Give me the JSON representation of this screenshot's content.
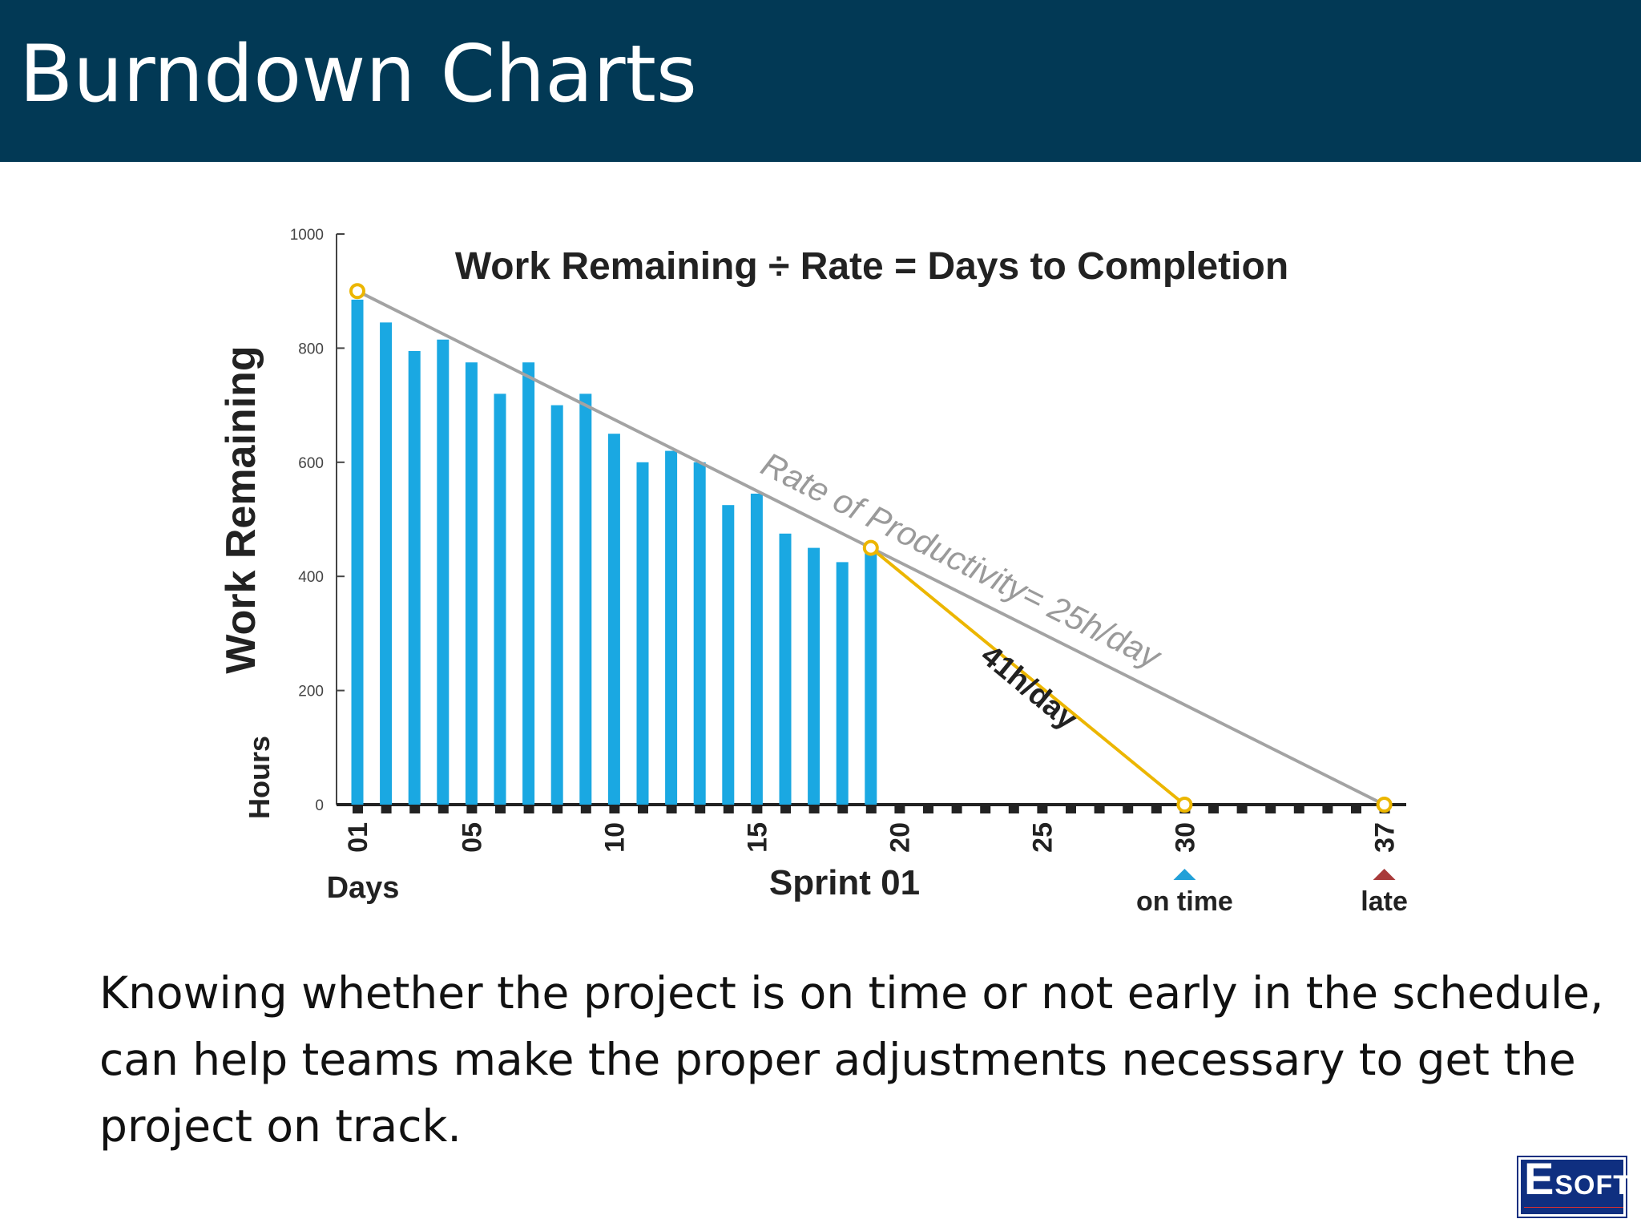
{
  "slide": {
    "title": "Burndown Charts",
    "caption": "Knowing whether the project is on time or not early in the schedule, can help teams make the proper adjustments necessary to get the project on track.",
    "logo": {
      "first_letter": "E",
      "rest": "SOFT"
    }
  },
  "colors": {
    "header_bg": "#023955",
    "bars": "#1aa8e2",
    "ideal_line": "#a3a3a3",
    "actual_line": "#ecb600",
    "on_time_marker": "#21a0d8",
    "late_marker": "#a83a3a"
  },
  "chart_data": {
    "type": "bar",
    "title": "Work Remaining ÷ Rate = Days to Completion",
    "ylabel": "Work Remaining",
    "yunit_label": "Hours",
    "xlabel": "Days",
    "xlabel_center": "Sprint 01",
    "ylim": [
      0,
      1000
    ],
    "yticks": [
      0,
      200,
      400,
      600,
      800,
      1000
    ],
    "xticks": [
      "01",
      "05",
      "10",
      "15",
      "20",
      "25",
      "30",
      "37"
    ],
    "days": [
      1,
      2,
      3,
      4,
      5,
      6,
      7,
      8,
      9,
      10,
      11,
      12,
      13,
      14,
      15,
      16,
      17,
      18,
      19
    ],
    "values": [
      885,
      845,
      795,
      815,
      775,
      720,
      775,
      700,
      720,
      650,
      600,
      620,
      600,
      525,
      545,
      475,
      450,
      425,
      445
    ],
    "ideal_line": {
      "label": "Rate of Productivity= 25h/day",
      "points": [
        [
          1,
          900
        ],
        [
          37,
          0
        ]
      ]
    },
    "actual_projection": {
      "label": "41h/day",
      "points": [
        [
          19,
          450
        ],
        [
          30,
          0
        ]
      ]
    },
    "milestones": [
      {
        "day": 30,
        "label": "on time"
      },
      {
        "day": 37,
        "label": "late"
      }
    ]
  }
}
